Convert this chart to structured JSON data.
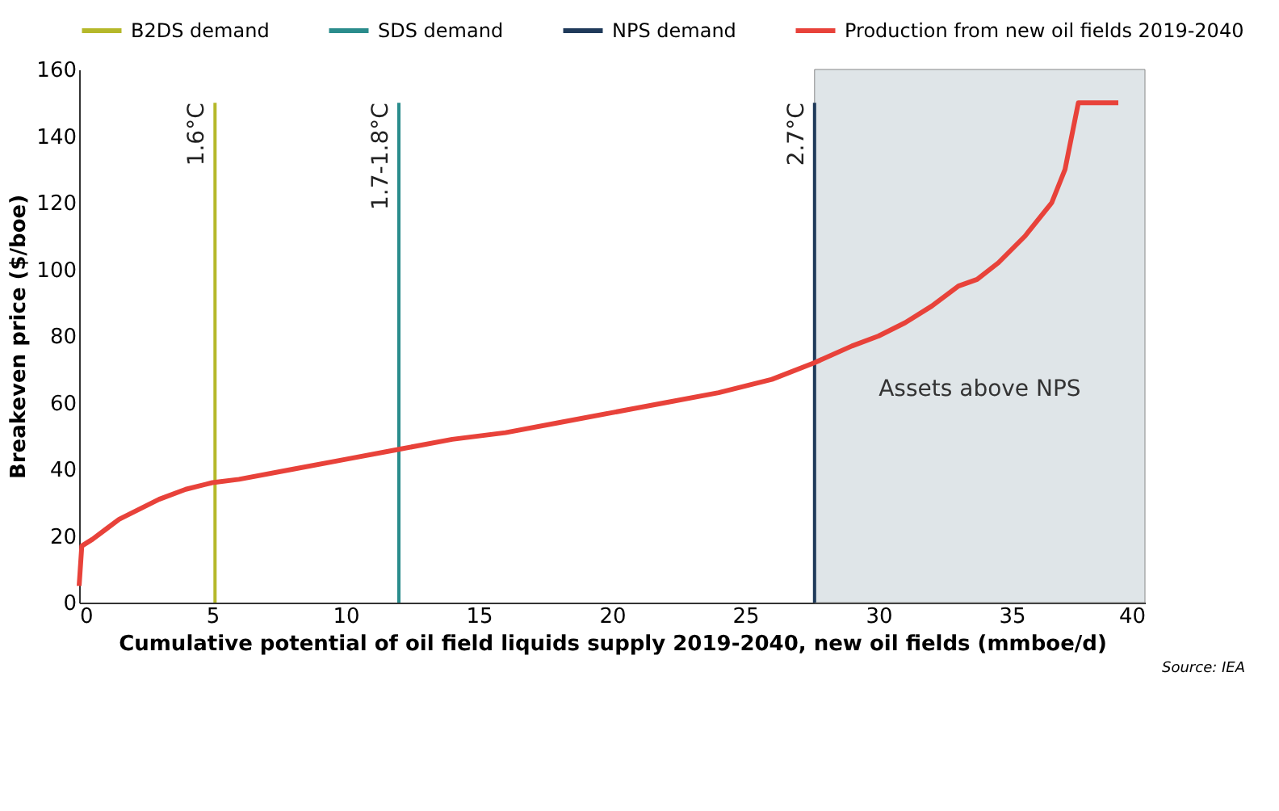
{
  "chart_data": {
    "type": "line",
    "xlabel": "Cumulative potential of oil field liquids supply 2019-2040, new oil fields (mmboe/d)",
    "ylabel": "Breakeven price ($/boe)",
    "xlim": [
      0,
      40
    ],
    "xticks": [
      0,
      5,
      10,
      15,
      20,
      25,
      30,
      35,
      40
    ],
    "ylim": [
      0,
      160
    ],
    "yticks": [
      0,
      20,
      40,
      60,
      80,
      100,
      120,
      140,
      160
    ],
    "grid": false,
    "legend": "top",
    "marker": "none",
    "line_style": "solid",
    "series": [
      {
        "name": "B2DS demand",
        "color": "#b5b82a",
        "x": [
          5.1,
          5.1
        ],
        "values": [
          0,
          150
        ]
      },
      {
        "name": "SDS demand",
        "color": "#2a8c8c",
        "x": [
          12,
          12
        ],
        "values": [
          0,
          150
        ]
      },
      {
        "name": "NPS demand",
        "color": "#1f3a5a",
        "x": [
          27.6,
          27.6
        ],
        "values": [
          0,
          150
        ]
      },
      {
        "name": "Production from new oil fields 2019-2040",
        "color": "#e8423a",
        "x": [
          0,
          0.1,
          0.5,
          1,
          1.5,
          2,
          3,
          4,
          5,
          6,
          8,
          10,
          12,
          14,
          16,
          18,
          20,
          22,
          24,
          26,
          27.6,
          29,
          30,
          31,
          32,
          33,
          33.7,
          34.5,
          35.5,
          36.5,
          37,
          37.3,
          37.5,
          39
        ],
        "values": [
          5,
          17,
          19,
          22,
          25,
          27,
          31,
          34,
          36,
          37,
          40,
          43,
          46,
          49,
          51,
          54,
          57,
          60,
          63,
          67,
          72,
          77,
          80,
          84,
          89,
          95,
          97,
          102,
          110,
          120,
          130,
          142,
          150,
          150
        ]
      }
    ],
    "bands": [
      {
        "axis": "x",
        "from": 27.6,
        "to": 40,
        "label": "Assets above NPS",
        "color": "#dfe5e8"
      }
    ],
    "annotations": [
      {
        "text": "1.6°C",
        "x": 5.1,
        "y": 150
      },
      {
        "text": "1.7-1.8°C",
        "x": 12,
        "y": 150
      },
      {
        "text": "2.7°C",
        "x": 27.6,
        "y": 150
      },
      "Source: IEA"
    ]
  }
}
